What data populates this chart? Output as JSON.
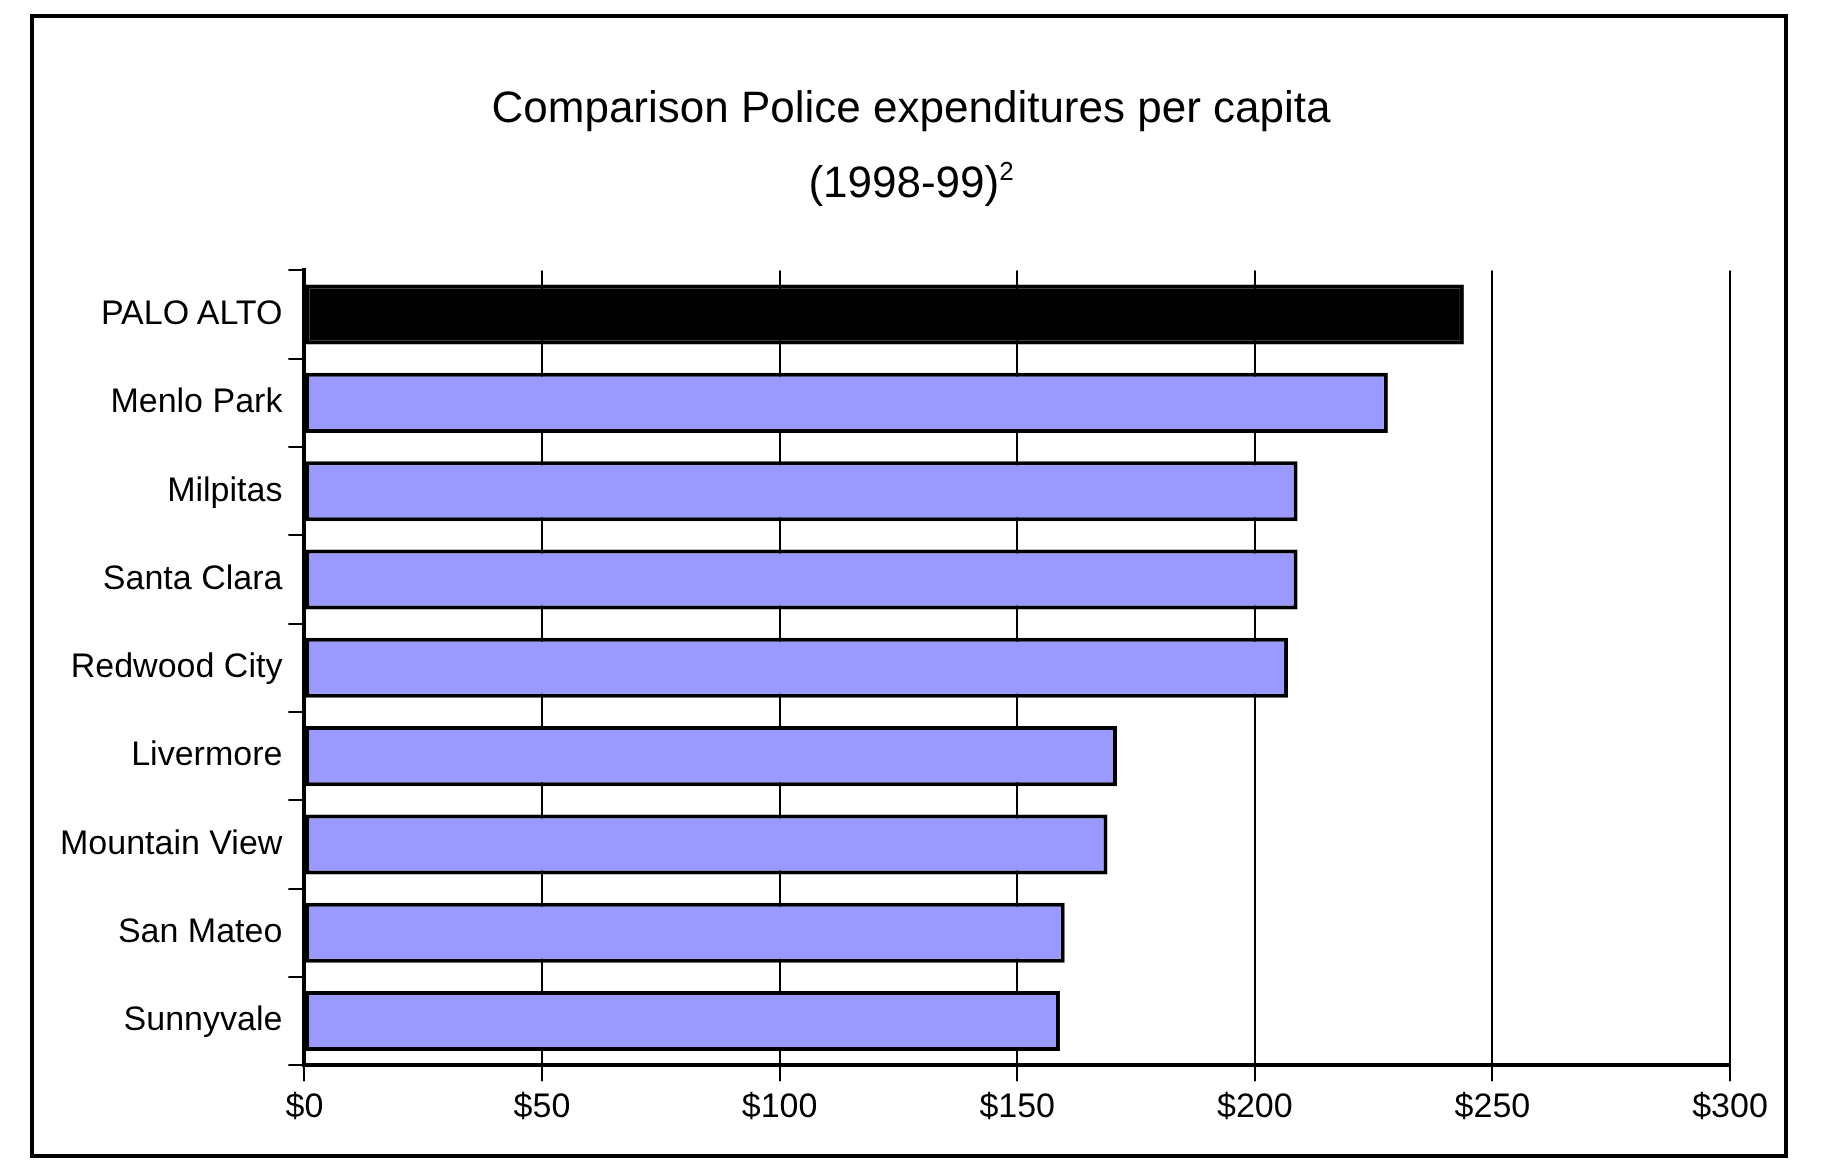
{
  "chart_data": {
    "type": "bar",
    "orientation": "horizontal",
    "title": "Comparison Police expenditures per capita",
    "subtitle": "(1998-99)$^{2}$",
    "categories": [
      "PALO ALTO",
      "Menlo Park",
      "Milpitas",
      "Santa Clara",
      "Redwood City",
      "Livermore",
      "Mountain View",
      "San Mateo",
      "Sunnyvale"
    ],
    "values": [
      244,
      228,
      209,
      209,
      207,
      171,
      169,
      160,
      159
    ],
    "colors": [
      "#000000",
      "#9999ff",
      "#9999ff",
      "#9999ff",
      "#9999ff",
      "#9999ff",
      "#9999ff",
      "#9999ff",
      "#9999ff"
    ],
    "xlim": [
      0,
      300
    ],
    "xticks": [
      {
        "value": 0,
        "label": "$0"
      },
      {
        "value": 50,
        "label": "$50"
      },
      {
        "value": 100,
        "label": "$100"
      },
      {
        "value": 150,
        "label": "$150"
      },
      {
        "value": 200,
        "label": "$200"
      },
      {
        "value": 250,
        "label": "$250"
      },
      {
        "value": 300,
        "label": "$300"
      }
    ],
    "grid": "x",
    "legend": false
  }
}
